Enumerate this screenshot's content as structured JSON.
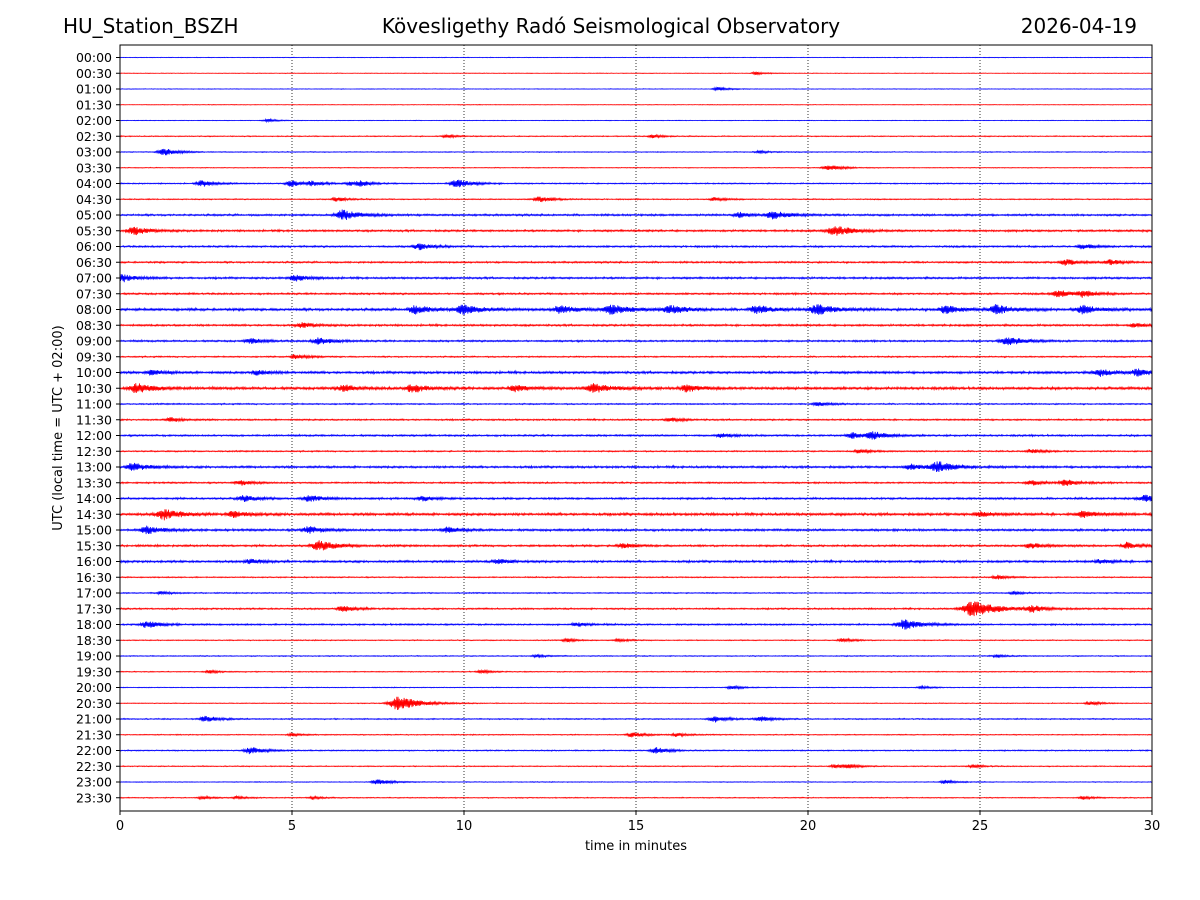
{
  "header": {
    "station": "HU_Station_BSZH",
    "observatory": "Kövesligethy Radó Seismological Observatory",
    "date": "2026-04-19"
  },
  "chart_data": {
    "type": "line",
    "title": "Kövesligethy Radó Seismological Observatory",
    "xlabel": "time in minutes",
    "ylabel": "UTC (local time = UTC + 02:00)",
    "xlim": [
      0,
      30
    ],
    "xticks": [
      0,
      5,
      10,
      15,
      20,
      25,
      30
    ],
    "grid": "vertical dotted lines at 5, 10, 15, 20, 25 minutes",
    "row_colors": [
      "#0000ff",
      "#ff0000"
    ],
    "rows": [
      {
        "label": "00:00",
        "noise": 0.3,
        "events": []
      },
      {
        "label": "00:30",
        "noise": 0.3,
        "events": [
          [
            18.5,
            1.5
          ]
        ]
      },
      {
        "label": "01:00",
        "noise": 0.3,
        "events": [
          [
            17.4,
            2
          ]
        ]
      },
      {
        "label": "01:30",
        "noise": 0.3,
        "events": []
      },
      {
        "label": "02:00",
        "noise": 0.3,
        "events": [
          [
            4.3,
            1.5
          ]
        ]
      },
      {
        "label": "02:30",
        "noise": 0.5,
        "events": [
          [
            9.5,
            1.5
          ],
          [
            15.5,
            1.5
          ]
        ]
      },
      {
        "label": "03:00",
        "noise": 0.45,
        "events": [
          [
            1.3,
            3.5
          ],
          [
            18.6,
            1.5
          ]
        ]
      },
      {
        "label": "03:30",
        "noise": 0.4,
        "events": [
          [
            20.6,
            3
          ]
        ]
      },
      {
        "label": "04:00",
        "noise": 0.6,
        "events": [
          [
            2.4,
            3
          ],
          [
            5.0,
            3
          ],
          [
            5.6,
            2
          ],
          [
            6.7,
            2
          ],
          [
            7.0,
            2
          ],
          [
            9.8,
            4
          ]
        ]
      },
      {
        "label": "04:30",
        "noise": 0.55,
        "events": [
          [
            6.3,
            2
          ],
          [
            12.2,
            3
          ],
          [
            17.3,
            2
          ]
        ]
      },
      {
        "label": "05:00",
        "noise": 1.0,
        "events": [
          [
            6.5,
            5
          ],
          [
            18.0,
            2.5
          ],
          [
            19.0,
            4
          ]
        ]
      },
      {
        "label": "05:30",
        "noise": 1.0,
        "events": [
          [
            0.4,
            4
          ],
          [
            20.8,
            5
          ]
        ]
      },
      {
        "label": "06:00",
        "noise": 0.9,
        "events": [
          [
            8.7,
            3
          ],
          [
            28.0,
            2.5
          ]
        ]
      },
      {
        "label": "06:30",
        "noise": 0.9,
        "events": [
          [
            27.5,
            3
          ],
          [
            28.8,
            2.5
          ]
        ]
      },
      {
        "label": "07:00",
        "noise": 1.0,
        "events": [
          [
            0.1,
            3.5
          ],
          [
            5.1,
            3
          ]
        ]
      },
      {
        "label": "07:30",
        "noise": 0.9,
        "events": [
          [
            27.3,
            3.5
          ],
          [
            28.0,
            3
          ]
        ]
      },
      {
        "label": "08:00",
        "noise": 1.3,
        "events": [
          [
            8.6,
            4
          ],
          [
            10.0,
            5
          ],
          [
            12.8,
            4
          ],
          [
            14.3,
            5
          ],
          [
            16.0,
            4
          ],
          [
            18.5,
            4
          ],
          [
            20.3,
            5
          ],
          [
            24.0,
            4
          ],
          [
            25.5,
            4.5
          ],
          [
            28.0,
            4
          ]
        ]
      },
      {
        "label": "08:30",
        "noise": 1.0,
        "events": [
          [
            5.3,
            2.5
          ],
          [
            29.5,
            2
          ]
        ]
      },
      {
        "label": "09:00",
        "noise": 0.9,
        "events": [
          [
            3.8,
            2.5
          ],
          [
            5.8,
            3.5
          ],
          [
            25.8,
            4.5
          ]
        ]
      },
      {
        "label": "09:30",
        "noise": 0.7,
        "events": [
          [
            5.1,
            2.5
          ]
        ]
      },
      {
        "label": "10:00",
        "noise": 1.2,
        "events": [
          [
            0.9,
            2.5
          ],
          [
            4.0,
            2.5
          ],
          [
            28.5,
            3.5
          ],
          [
            29.6,
            3.5
          ]
        ]
      },
      {
        "label": "10:30",
        "noise": 1.3,
        "events": [
          [
            0.5,
            5
          ],
          [
            6.5,
            3
          ],
          [
            8.5,
            4
          ],
          [
            11.5,
            3
          ],
          [
            13.8,
            5
          ],
          [
            16.5,
            3.5
          ]
        ]
      },
      {
        "label": "11:00",
        "noise": 0.7,
        "events": [
          [
            20.3,
            2
          ]
        ]
      },
      {
        "label": "11:30",
        "noise": 0.8,
        "events": [
          [
            1.5,
            2
          ],
          [
            16.0,
            2
          ]
        ]
      },
      {
        "label": "12:00",
        "noise": 0.9,
        "events": [
          [
            17.5,
            2
          ],
          [
            21.3,
            3
          ],
          [
            21.9,
            3.5
          ]
        ]
      },
      {
        "label": "12:30",
        "noise": 0.7,
        "events": [
          [
            21.5,
            2
          ],
          [
            26.5,
            2
          ]
        ]
      },
      {
        "label": "13:00",
        "noise": 1.1,
        "events": [
          [
            0.4,
            4
          ],
          [
            23.0,
            3
          ],
          [
            23.8,
            5
          ]
        ]
      },
      {
        "label": "13:30",
        "noise": 0.8,
        "events": [
          [
            3.5,
            2.5
          ],
          [
            26.5,
            2.5
          ],
          [
            27.5,
            3
          ]
        ]
      },
      {
        "label": "14:00",
        "noise": 1.0,
        "events": [
          [
            3.6,
            3
          ],
          [
            5.5,
            3
          ],
          [
            8.8,
            2.5
          ],
          [
            29.8,
            3.5
          ]
        ]
      },
      {
        "label": "14:30",
        "noise": 1.3,
        "events": [
          [
            1.3,
            5
          ],
          [
            3.3,
            3
          ],
          [
            25.0,
            2.5
          ],
          [
            28.0,
            3
          ]
        ]
      },
      {
        "label": "15:00",
        "noise": 1.1,
        "events": [
          [
            0.8,
            4
          ],
          [
            5.5,
            3.5
          ],
          [
            9.5,
            2.5
          ]
        ]
      },
      {
        "label": "15:30",
        "noise": 1.0,
        "events": [
          [
            5.8,
            5
          ],
          [
            14.6,
            2.5
          ],
          [
            26.5,
            2.5
          ],
          [
            29.3,
            3
          ]
        ]
      },
      {
        "label": "16:00",
        "noise": 1.1,
        "events": [
          [
            3.8,
            2.5
          ],
          [
            11.0,
            2.5
          ],
          [
            28.5,
            2
          ]
        ]
      },
      {
        "label": "16:30",
        "noise": 0.6,
        "events": [
          [
            25.5,
            2
          ]
        ]
      },
      {
        "label": "17:00",
        "noise": 0.6,
        "events": [
          [
            1.2,
            1.5
          ],
          [
            26.0,
            1.5
          ]
        ]
      },
      {
        "label": "17:30",
        "noise": 0.8,
        "events": [
          [
            6.5,
            3
          ],
          [
            24.8,
            8
          ],
          [
            26.5,
            3
          ]
        ]
      },
      {
        "label": "18:00",
        "noise": 0.8,
        "events": [
          [
            0.8,
            3.5
          ],
          [
            13.3,
            2
          ],
          [
            22.8,
            5
          ]
        ]
      },
      {
        "label": "18:30",
        "noise": 0.5,
        "events": [
          [
            13.0,
            1.5
          ],
          [
            14.5,
            1.5
          ],
          [
            21.0,
            2
          ]
        ]
      },
      {
        "label": "19:00",
        "noise": 0.5,
        "events": [
          [
            12.1,
            1.5
          ],
          [
            25.5,
            1.5
          ]
        ]
      },
      {
        "label": "19:30",
        "noise": 0.5,
        "events": [
          [
            2.6,
            1.5
          ],
          [
            10.5,
            1.5
          ]
        ]
      },
      {
        "label": "20:00",
        "noise": 0.4,
        "events": [
          [
            17.8,
            2
          ],
          [
            23.3,
            1.5
          ]
        ]
      },
      {
        "label": "20:30",
        "noise": 0.4,
        "events": [
          [
            8.1,
            7
          ],
          [
            28.2,
            2
          ]
        ]
      },
      {
        "label": "21:00",
        "noise": 0.6,
        "events": [
          [
            2.5,
            3
          ],
          [
            17.3,
            3
          ],
          [
            18.6,
            2.5
          ]
        ]
      },
      {
        "label": "21:30",
        "noise": 0.5,
        "events": [
          [
            5.0,
            1.5
          ],
          [
            14.9,
            2.5
          ],
          [
            16.2,
            2
          ]
        ]
      },
      {
        "label": "22:00",
        "noise": 0.6,
        "events": [
          [
            3.8,
            3.5
          ],
          [
            15.6,
            3
          ]
        ]
      },
      {
        "label": "22:30",
        "noise": 0.5,
        "events": [
          [
            20.8,
            2
          ],
          [
            21.2,
            1.5
          ],
          [
            24.8,
            1.5
          ]
        ]
      },
      {
        "label": "23:00",
        "noise": 0.4,
        "events": [
          [
            7.5,
            3
          ],
          [
            24.0,
            2
          ]
        ]
      },
      {
        "label": "23:30",
        "noise": 0.5,
        "events": [
          [
            2.4,
            1.5
          ],
          [
            3.4,
            1.5
          ],
          [
            5.6,
            1.5
          ],
          [
            28.0,
            1.5
          ]
        ]
      }
    ]
  }
}
